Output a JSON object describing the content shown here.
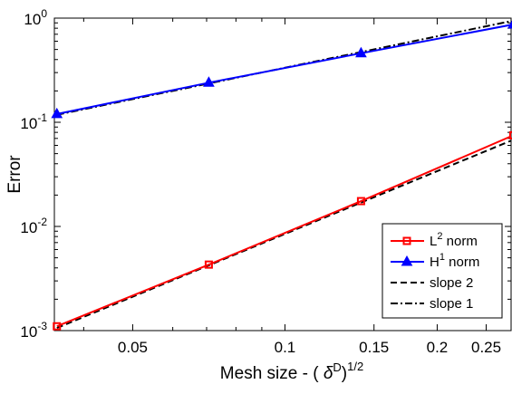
{
  "chart_data": {
    "type": "line",
    "x_scale": "log",
    "y_scale": "log",
    "xlim": [
      0.035,
      0.28
    ],
    "ylim": [
      0.001,
      1
    ],
    "xlabel": {
      "text": "Mesh size - (",
      "symbol": "δ",
      "sup": "D",
      "close": ")",
      "exp": "1/2"
    },
    "ylabel": "Error",
    "x_ticks": [
      {
        "value": 0.05,
        "label": "0.05"
      },
      {
        "value": 0.1,
        "label": "0.1"
      },
      {
        "value": 0.15,
        "label": "0.15"
      },
      {
        "value": 0.2,
        "label": "0.2"
      },
      {
        "value": 0.25,
        "label": "0.25"
      }
    ],
    "y_ticks": [
      {
        "value": 0.001,
        "base": "10",
        "exp": "-3"
      },
      {
        "value": 0.01,
        "base": "10",
        "exp": "-2"
      },
      {
        "value": 0.1,
        "base": "10",
        "exp": "-1"
      },
      {
        "value": 1,
        "base": "10",
        "exp": "0"
      }
    ],
    "grid": false,
    "legend_position": "bottom-right",
    "series": [
      {
        "name": "L",
        "sup": "2",
        "suffix": " norm",
        "color": "#ff0000",
        "marker": "square",
        "dash": "solid",
        "x": [
          0.0354,
          0.0707,
          0.1414,
          0.2828
        ],
        "y": [
          0.0011,
          0.0043,
          0.0175,
          0.075
        ]
      },
      {
        "name": "H",
        "sup": "1",
        "suffix": " norm",
        "color": "#0000ff",
        "marker": "triangle",
        "dash": "solid",
        "x": [
          0.0354,
          0.0707,
          0.1414,
          0.2828
        ],
        "y": [
          0.12,
          0.24,
          0.46,
          0.87
        ]
      },
      {
        "name": "slope 2",
        "color": "#000000",
        "marker": "none",
        "dash": "dashed",
        "x": [
          0.0354,
          0.2828
        ],
        "y": [
          0.00106,
          0.068
        ]
      },
      {
        "name": "slope 1",
        "color": "#000000",
        "marker": "none",
        "dash": "dashdot",
        "x": [
          0.0354,
          0.2828
        ],
        "y": [
          0.118,
          0.945
        ]
      }
    ]
  }
}
